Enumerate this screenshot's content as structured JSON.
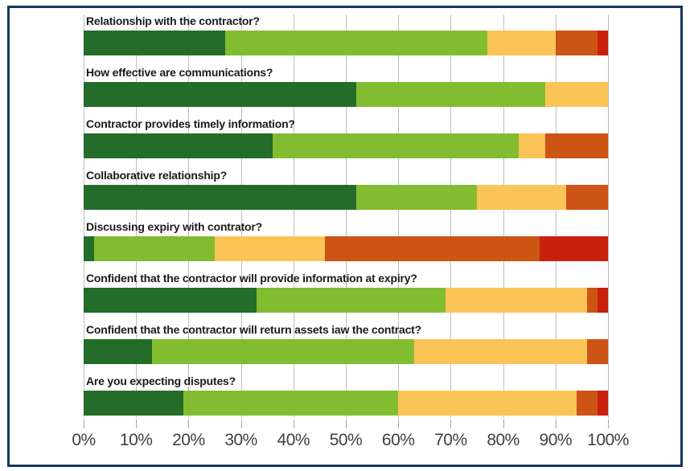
{
  "colors": {
    "border": "#17375e",
    "gridline": "#bfbfbf",
    "tick": "#a6a6a6",
    "tick_label": "#3f3f3f",
    "category_label": "#1a1a1a",
    "background": "#ffffff"
  },
  "chart_data": {
    "type": "bar",
    "orientation": "horizontal",
    "stacked": true,
    "title": "",
    "xlabel": "",
    "ylabel": "",
    "xlim": [
      0,
      100
    ],
    "grid": true,
    "legend": "none",
    "x_ticks": [
      "0%",
      "10%",
      "20%",
      "30%",
      "40%",
      "50%",
      "60%",
      "70%",
      "80%",
      "90%",
      "100%"
    ],
    "categories": [
      "Relationship with the contractor?",
      "How effective are communications?",
      "Contractor provides timely information?",
      "Collaborative relationship?",
      "Discussing expiry with contrator?",
      "Confident that the contractor will provide information at expiry?",
      "Confident that the contractor will return assets iaw the contract?",
      "Are you expecting disputes?"
    ],
    "series": [
      {
        "name": "dark-green",
        "color": "#236c29",
        "values": [
          27,
          52,
          36,
          52,
          2,
          33,
          13,
          19
        ]
      },
      {
        "name": "light-green",
        "color": "#82bc31",
        "values": [
          50,
          36,
          47,
          23,
          23,
          36,
          50,
          41
        ]
      },
      {
        "name": "amber",
        "color": "#fbc457",
        "values": [
          13,
          12,
          5,
          17,
          21,
          27,
          33,
          34
        ]
      },
      {
        "name": "orange",
        "color": "#cc5414",
        "values": [
          8,
          0,
          12,
          8,
          41,
          2,
          4,
          4
        ]
      },
      {
        "name": "red",
        "color": "#c8200c",
        "values": [
          2,
          0,
          0,
          0,
          13,
          2,
          0,
          2
        ]
      }
    ]
  }
}
